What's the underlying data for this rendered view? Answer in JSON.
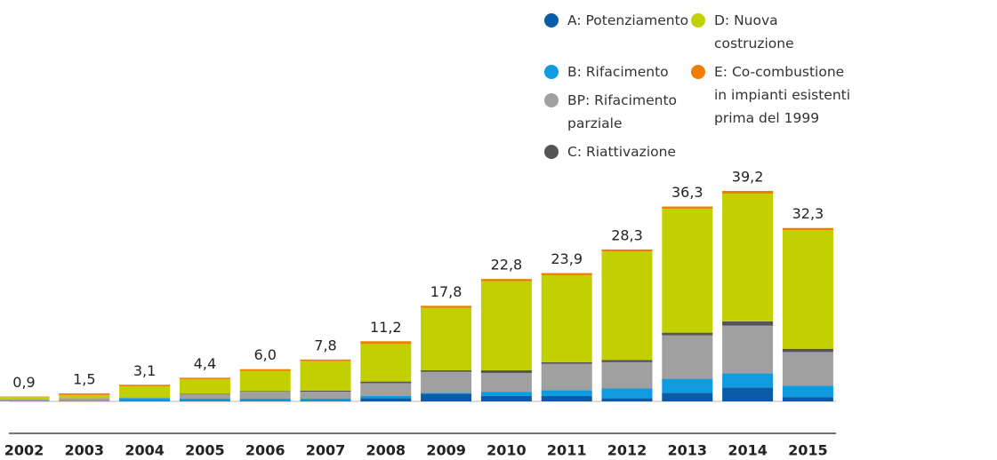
{
  "chart_data": {
    "type": "stacked_bar",
    "categories": [
      "2002",
      "2003",
      "2004",
      "2005",
      "2006",
      "2007",
      "2008",
      "2009",
      "2010",
      "2011",
      "2012",
      "2013",
      "2014",
      "2015"
    ],
    "series": [
      {
        "name": "A: Potenziamento",
        "color": "#0a5ca8",
        "values": [
          0,
          0,
          0.1,
          0.1,
          0.1,
          0.1,
          0.6,
          1.4,
          1.0,
          1.0,
          0.6,
          1.6,
          2.6,
          0.8
        ]
      },
      {
        "name": "B: Rifacimento",
        "color": "#0f9be0",
        "values": [
          0.1,
          0.1,
          0.5,
          0.4,
          0.4,
          0.4,
          0.4,
          0.2,
          0.8,
          1.1,
          1.8,
          2.6,
          2.6,
          2.1
        ]
      },
      {
        "name": "BP: Rifacimento parziale",
        "color": "#a0a0a0",
        "values": [
          0.3,
          0.5,
          0.2,
          0.8,
          1.3,
          1.3,
          2.4,
          3.9,
          3.5,
          4.9,
          4.9,
          8.1,
          8.9,
          6.3
        ]
      },
      {
        "name": "C: Riattivazione",
        "color": "#555555",
        "values": [
          0,
          0,
          0,
          0.1,
          0.1,
          0.2,
          0.3,
          0.3,
          0.5,
          0.3,
          0.4,
          0.5,
          0.8,
          0.6
        ]
      },
      {
        "name": "D: Nuova costruzione",
        "color": "#c3d000",
        "values": [
          0.4,
          0.6,
          2.0,
          2.7,
          3.8,
          5.5,
          7.0,
          11.6,
          16.6,
          16.2,
          20.2,
          23.1,
          23.8,
          22.1
        ]
      },
      {
        "name": "E: Co-combustione in impianti esistenti prima del 1999",
        "color": "#f07d00",
        "values": [
          0.1,
          0.3,
          0.3,
          0.3,
          0.3,
          0.3,
          0.5,
          0.4,
          0.4,
          0.4,
          0.4,
          0.4,
          0.5,
          0.4
        ]
      }
    ],
    "totals": [
      0.9,
      1.5,
      3.1,
      4.4,
      6.0,
      7.8,
      11.2,
      17.8,
      22.8,
      23.9,
      28.3,
      36.3,
      39.2,
      32.3
    ],
    "total_labels": [
      "0,9",
      "1,5",
      "3,1",
      "4,4",
      "6,0",
      "7,8",
      "11,2",
      "17,8",
      "22,8",
      "23,9",
      "28,3",
      "36,3",
      "39,2",
      "32,3"
    ]
  }
}
